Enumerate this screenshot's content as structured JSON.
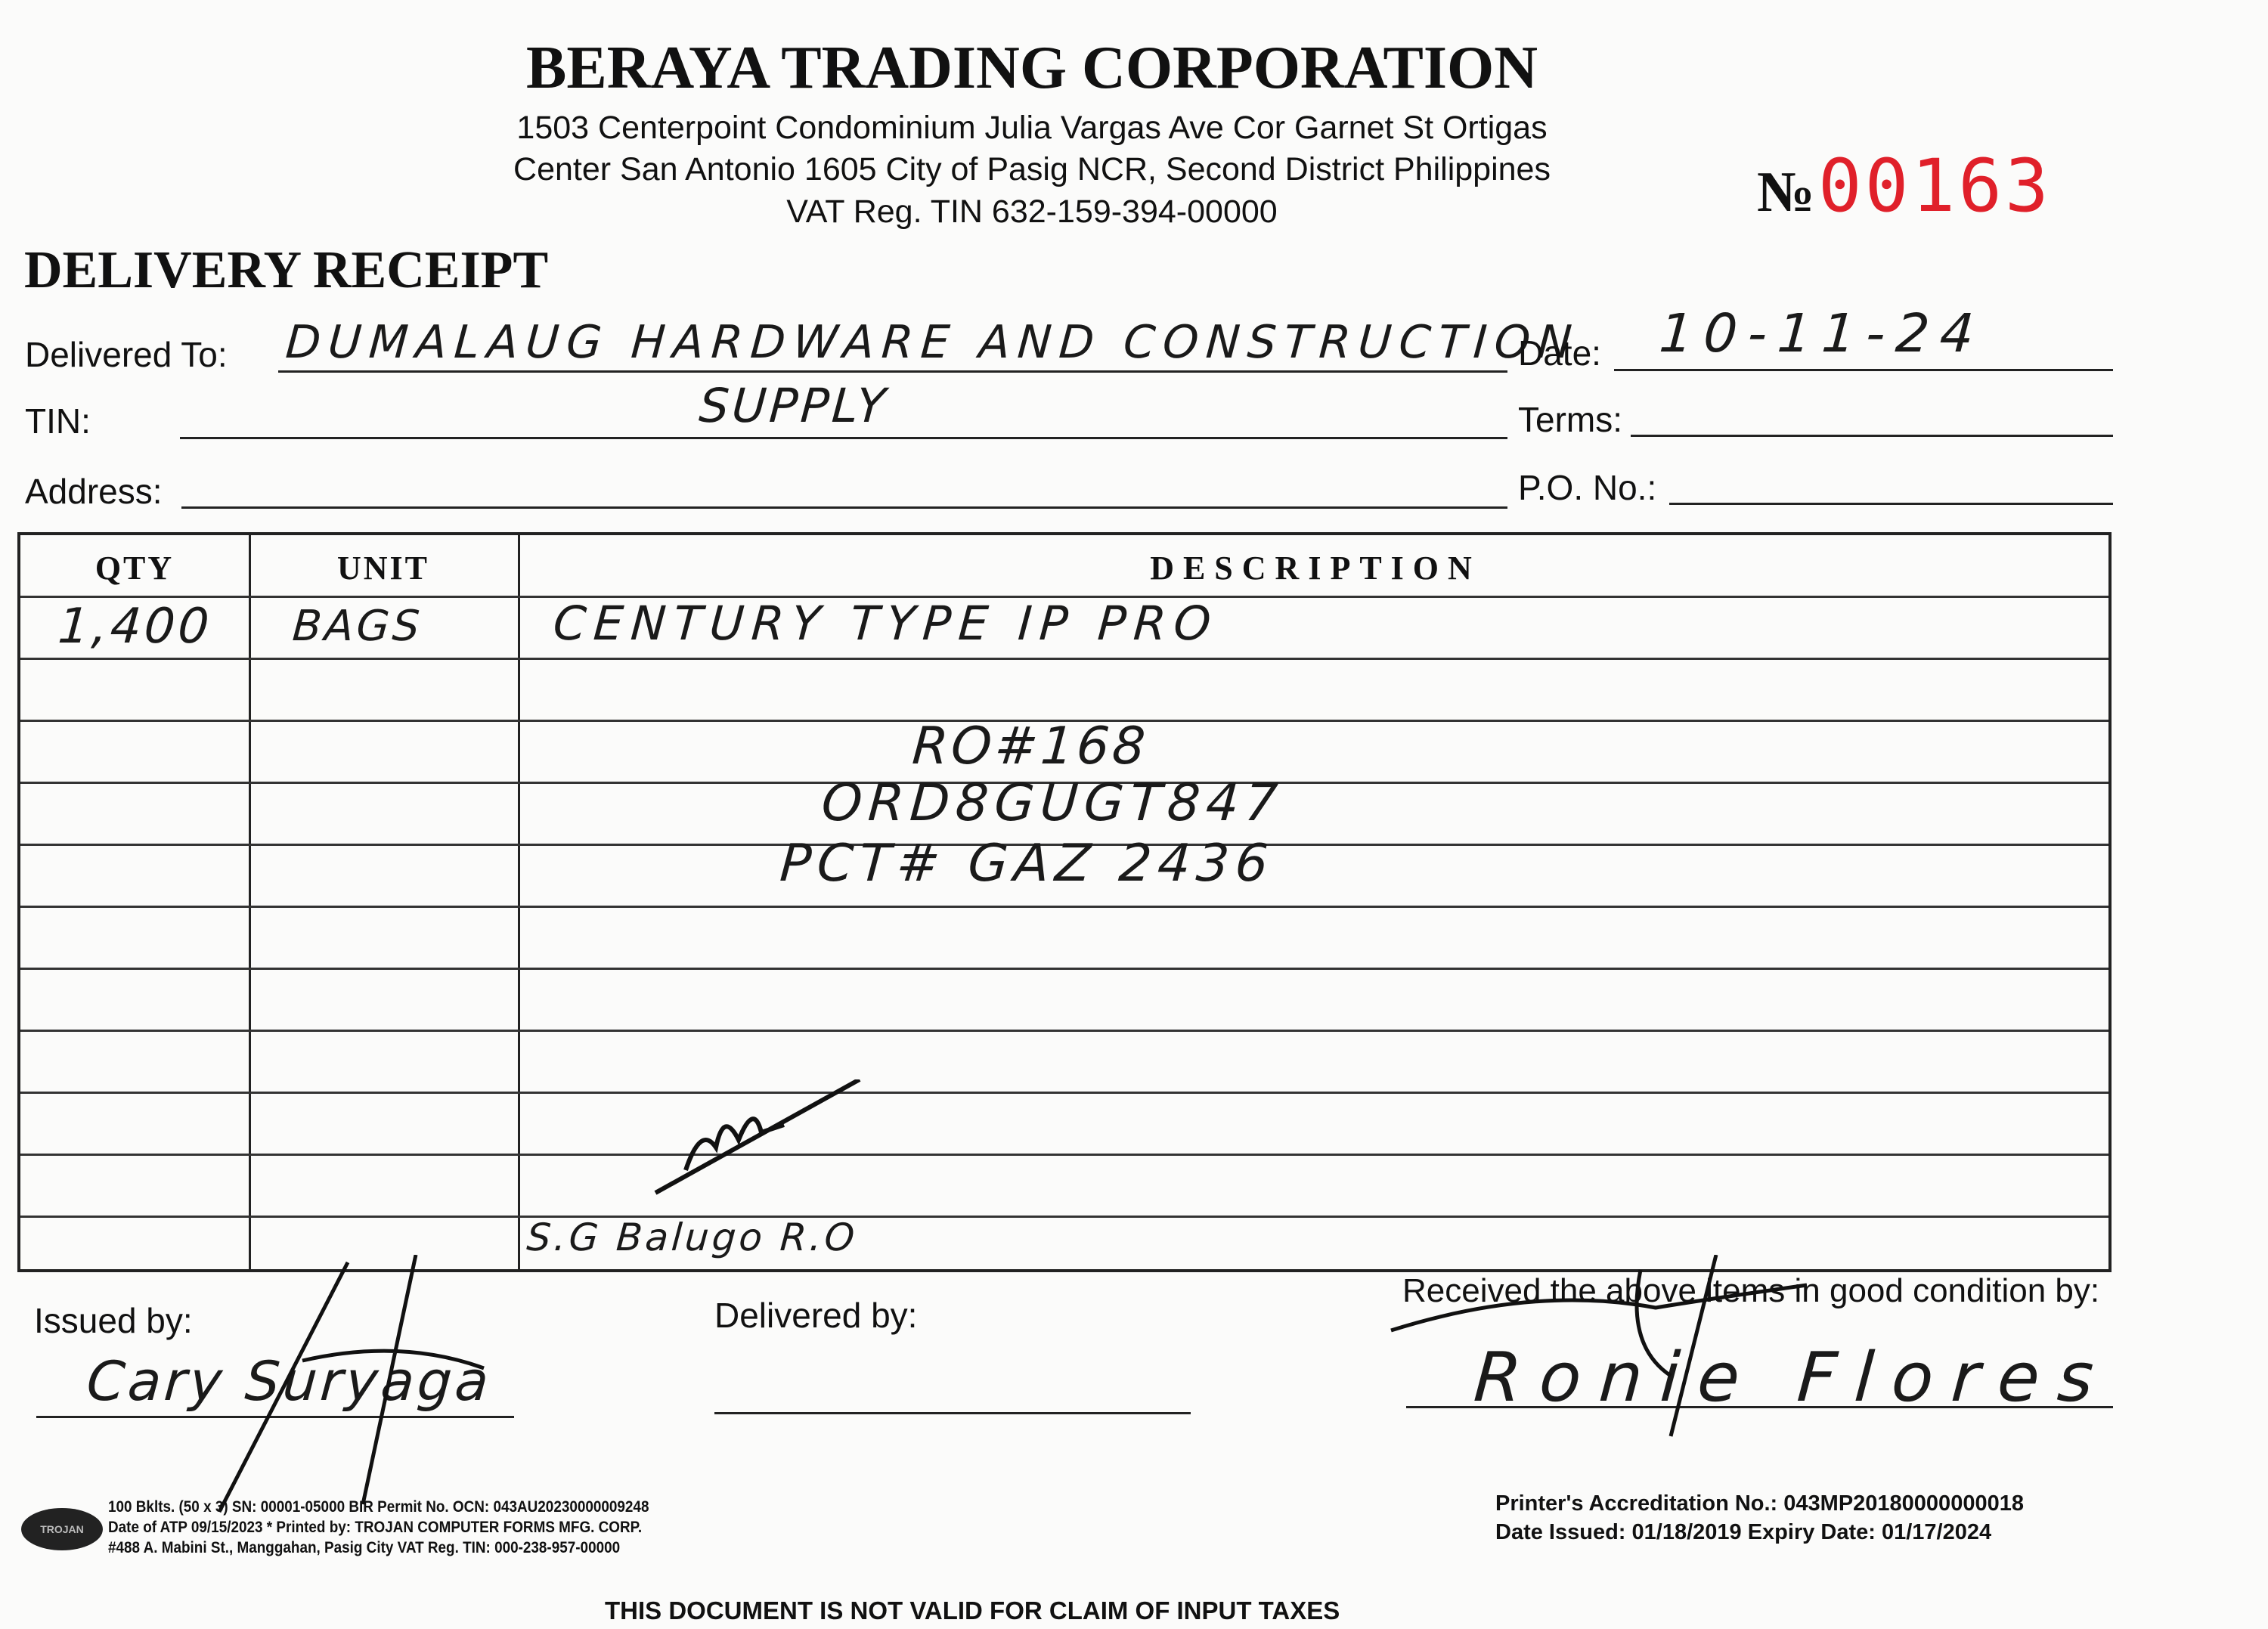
{
  "company": {
    "name": "BERAYA TRADING CORPORATION",
    "address_line1": "1503 Centerpoint Condominium Julia Vargas Ave Cor Garnet St Ortigas",
    "address_line2": "Center San Antonio 1605 City of Pasig NCR, Second District Philippines",
    "vat": "VAT Reg. TIN 632-159-394-00000"
  },
  "receipt": {
    "no_label": "№",
    "number": "00163",
    "title": "DELIVERY RECEIPT",
    "number_color": "#e0202a"
  },
  "fields": {
    "delivered_to_label": "Delivered To:",
    "delivered_to_value": "DUMALAUG HARDWARE AND CONSTRUCTION",
    "delivered_to_value2": "SUPPLY",
    "tin_label": "TIN:",
    "address_label": "Address:",
    "date_label": "Date:",
    "date_value": "10-11-24",
    "terms_label": "Terms:",
    "po_label": "P.O. No.:"
  },
  "table": {
    "headers": [
      "QTY",
      "UNIT",
      "DESCRIPTION"
    ],
    "rows": [
      {
        "qty": "1,400",
        "unit": "BAGS",
        "description": "CENTURY TYPE IP PRO"
      }
    ],
    "notes": [
      "RO#168",
      "ORD8GUGT847",
      "PCT# GAZ 2436",
      "S.G Balugo R.O"
    ]
  },
  "signatures": {
    "issued_by_label": "Issued by:",
    "issued_by_name": "Cary Suryaga",
    "delivered_by_label": "Delivered by:",
    "received_label": "Received the above items in good condition by:",
    "received_by_name": "Ronie Flores"
  },
  "footer": {
    "left": [
      "100 Bklts. (50 x 3) SN: 00001-05000 BIR Permit No. OCN: 043AU20230000009248",
      "Date of ATP 09/15/2023   * Printed by: TROJAN COMPUTER FORMS MFG. CORP.",
      "#488 A. Mabini St., Manggahan, Pasig City   VAT Reg. TIN: 000-238-957-00000"
    ],
    "printer_logo": "TROJAN",
    "accreditation": "Printer's Accreditation No.: 043MP20180000000018",
    "dates": "Date Issued: 01/18/2019   Expiry Date: 01/17/2024",
    "disclaimer": "THIS DOCUMENT IS NOT VALID FOR CLAIM OF INPUT TAXES"
  }
}
